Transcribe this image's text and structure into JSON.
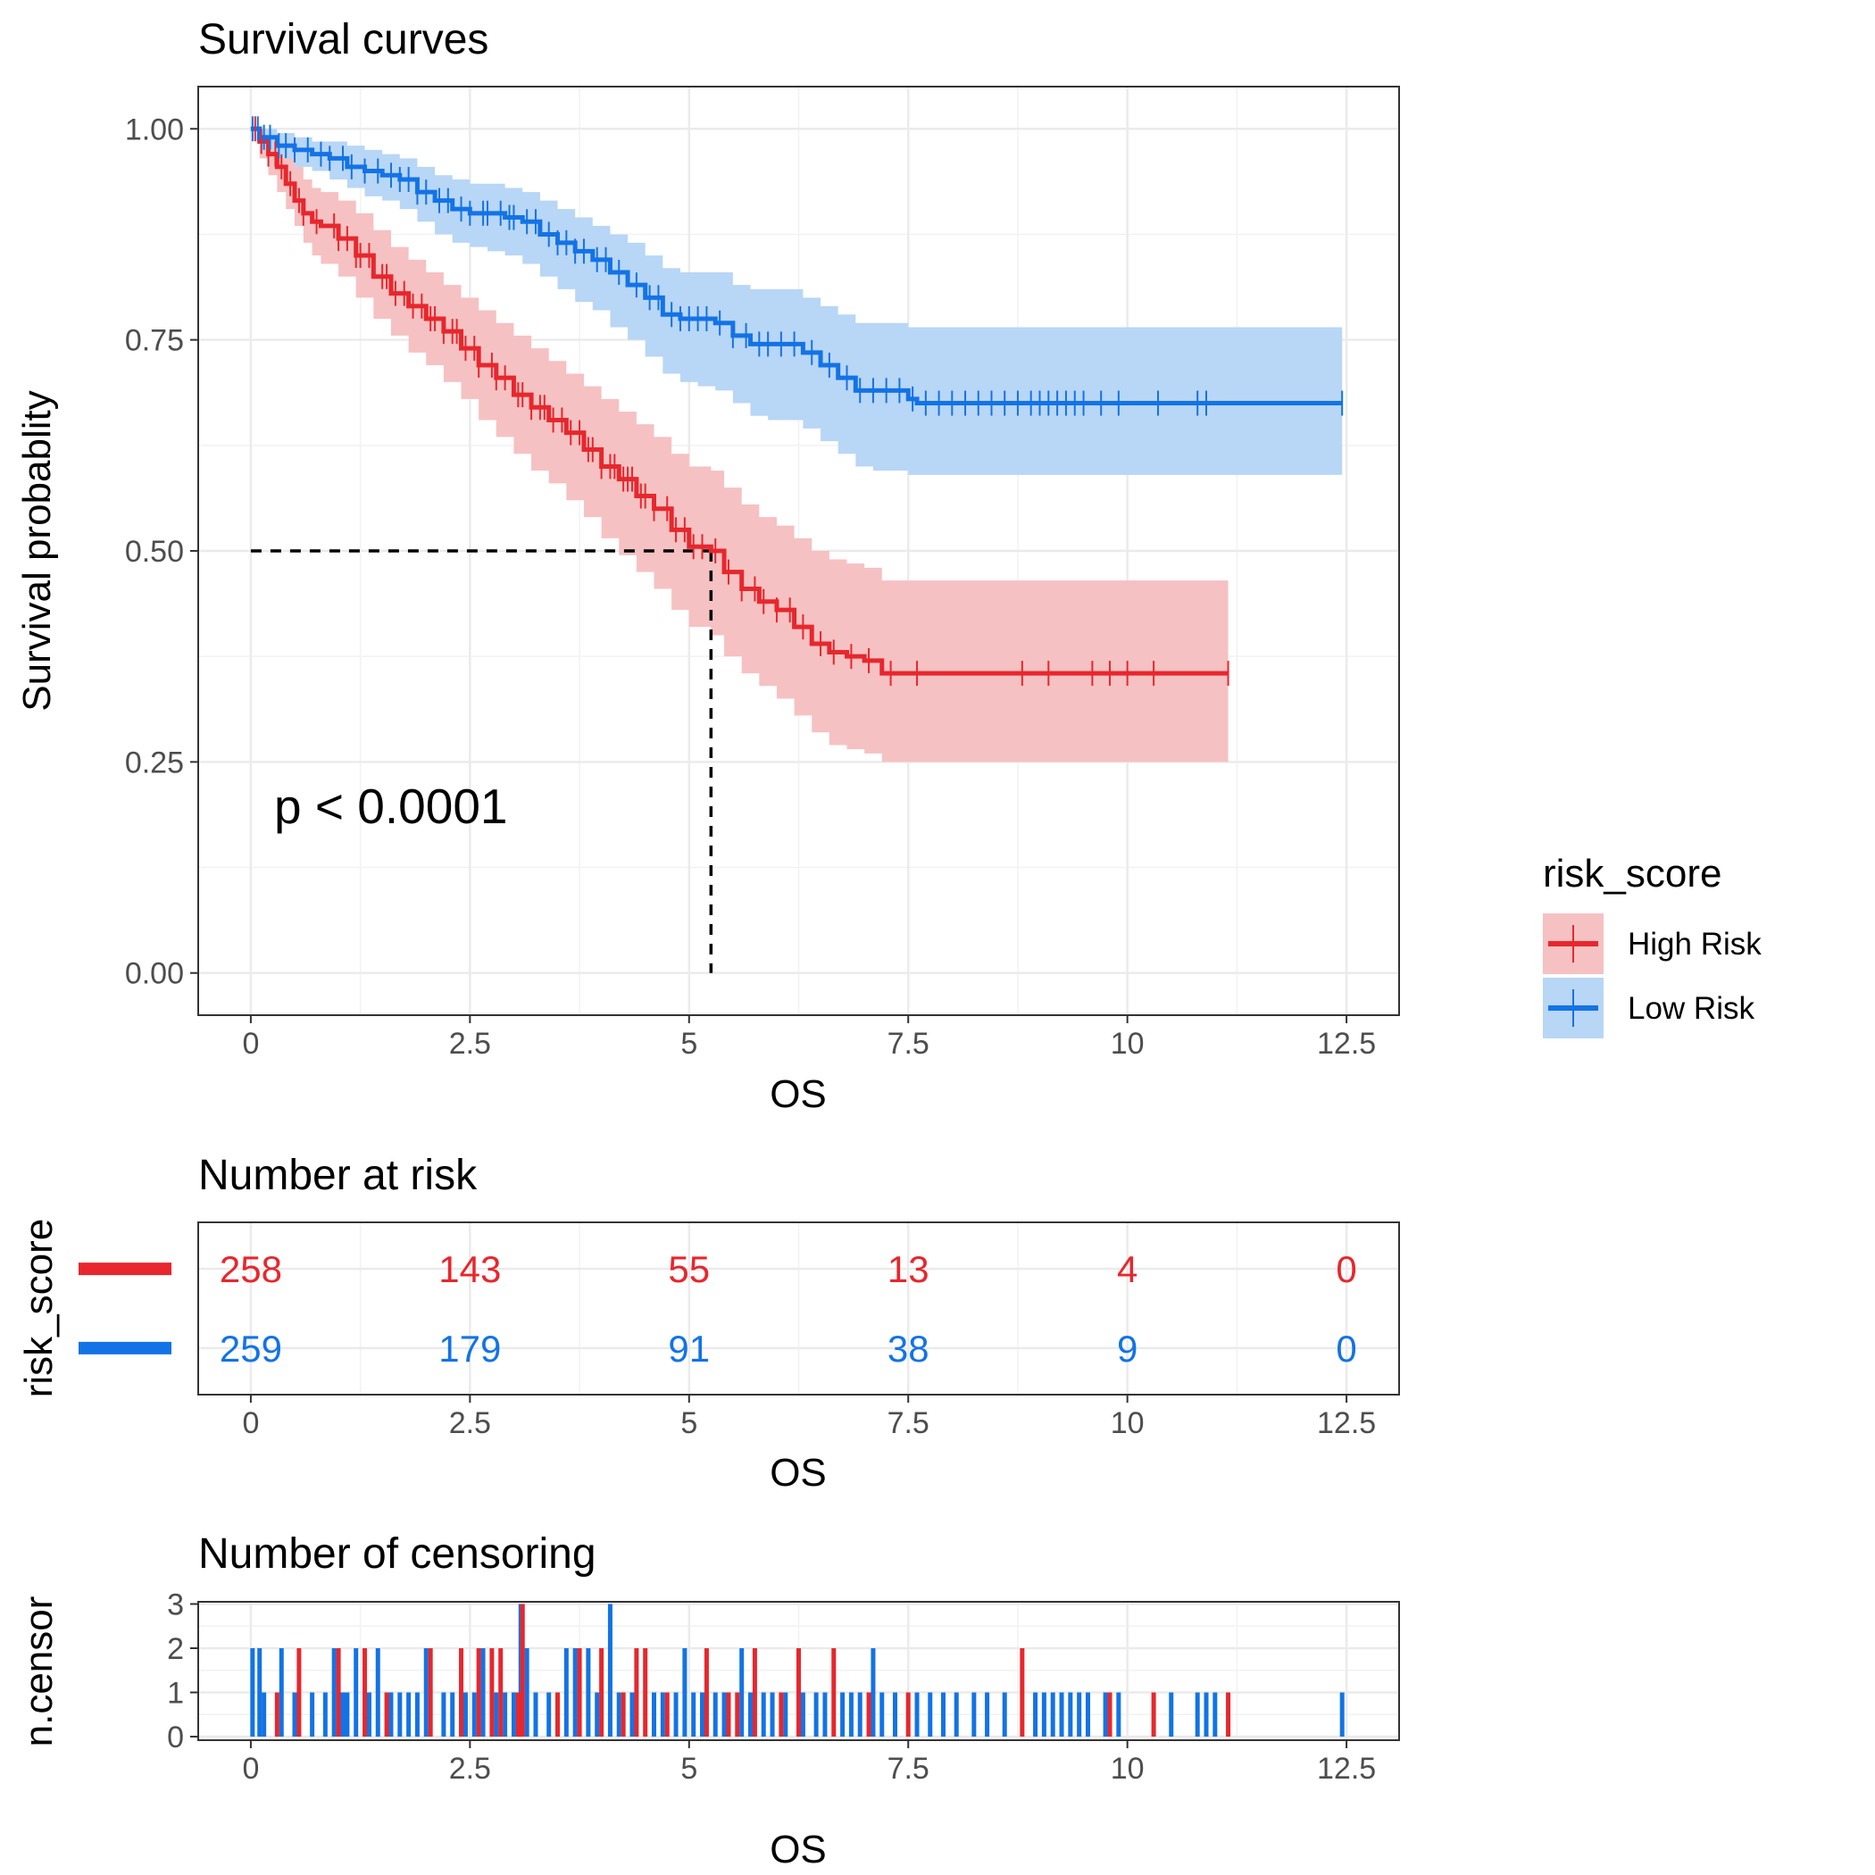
{
  "colors": {
    "high": "#E7272D",
    "low": "#1373E6",
    "high_fill": "#F6C1C2",
    "low_fill": "#B8D6F6"
  },
  "chart_data": [
    {
      "type": "line",
      "title": "Survival curves",
      "xlabel": "OS",
      "ylabel": "Survival probablity",
      "xlim": [
        -0.6,
        13.1
      ],
      "ylim": [
        -0.05,
        1.05
      ],
      "x_ticks": [
        0,
        2.5,
        5,
        7.5,
        10,
        12.5
      ],
      "x_tick_labels": [
        "0",
        "2.5",
        "5",
        "7.5",
        "10",
        "12.5"
      ],
      "y_ticks": [
        0,
        0.25,
        0.5,
        0.75,
        1.0
      ],
      "y_tick_labels": [
        "0.00",
        "0.25",
        "0.50",
        "0.75",
        "1.00"
      ],
      "grid": true,
      "annotation": "p < 0.0001",
      "median_line": {
        "y": 0.5,
        "x": 5.25
      },
      "legend": {
        "title": "risk_score",
        "placement": "right",
        "entries": [
          "High Risk",
          "Low Risk"
        ]
      },
      "series": [
        {
          "name": "High Risk",
          "color_key": "high",
          "x": [
            0,
            0.1,
            0.2,
            0.3,
            0.4,
            0.5,
            0.6,
            0.7,
            0.8,
            1.0,
            1.2,
            1.4,
            1.6,
            1.8,
            2.0,
            2.2,
            2.4,
            2.6,
            2.8,
            3.0,
            3.2,
            3.4,
            3.6,
            3.8,
            4.0,
            4.2,
            4.4,
            4.6,
            4.8,
            5.0,
            5.25,
            5.4,
            5.6,
            5.8,
            6.0,
            6.2,
            6.4,
            6.6,
            6.8,
            7.0,
            7.2,
            11.15
          ],
          "y": [
            1.0,
            0.985,
            0.97,
            0.955,
            0.935,
            0.915,
            0.9,
            0.89,
            0.885,
            0.87,
            0.85,
            0.825,
            0.805,
            0.79,
            0.775,
            0.76,
            0.74,
            0.72,
            0.705,
            0.685,
            0.67,
            0.655,
            0.64,
            0.62,
            0.6,
            0.585,
            0.565,
            0.55,
            0.525,
            0.505,
            0.5,
            0.475,
            0.455,
            0.44,
            0.43,
            0.41,
            0.39,
            0.38,
            0.375,
            0.37,
            0.355,
            0.355
          ],
          "lower": [
            1.0,
            0.965,
            0.945,
            0.925,
            0.905,
            0.885,
            0.865,
            0.85,
            0.84,
            0.825,
            0.8,
            0.775,
            0.755,
            0.735,
            0.72,
            0.7,
            0.68,
            0.655,
            0.635,
            0.615,
            0.595,
            0.58,
            0.56,
            0.54,
            0.515,
            0.495,
            0.475,
            0.455,
            0.43,
            0.41,
            0.4,
            0.375,
            0.355,
            0.34,
            0.325,
            0.305,
            0.285,
            0.27,
            0.265,
            0.26,
            0.25,
            0.25
          ],
          "upper": [
            1.0,
            1.0,
            0.995,
            0.985,
            0.97,
            0.955,
            0.94,
            0.93,
            0.925,
            0.915,
            0.9,
            0.88,
            0.86,
            0.845,
            0.83,
            0.815,
            0.8,
            0.785,
            0.77,
            0.755,
            0.74,
            0.725,
            0.71,
            0.695,
            0.68,
            0.665,
            0.65,
            0.635,
            0.615,
            0.6,
            0.595,
            0.575,
            0.555,
            0.54,
            0.53,
            0.515,
            0.5,
            0.49,
            0.485,
            0.48,
            0.465,
            0.465
          ],
          "censor_x": [
            0.05,
            0.12,
            0.2,
            0.28,
            0.35,
            0.45,
            0.55,
            0.6,
            0.75,
            0.95,
            1.0,
            1.1,
            1.2,
            1.25,
            1.35,
            1.5,
            1.55,
            1.65,
            1.75,
            1.85,
            1.95,
            2.05,
            2.1,
            2.2,
            2.3,
            2.35,
            2.45,
            2.55,
            2.6,
            2.75,
            2.8,
            2.9,
            3.05,
            3.1,
            3.2,
            3.3,
            3.35,
            3.45,
            3.55,
            3.65,
            3.75,
            3.85,
            3.9,
            4.0,
            4.1,
            4.15,
            4.25,
            4.3,
            4.35,
            4.45,
            4.5,
            4.6,
            4.75,
            4.85,
            4.95,
            5.05,
            5.15,
            5.3,
            5.45,
            5.6,
            5.75,
            5.85,
            6.0,
            6.15,
            6.3,
            6.5,
            6.65,
            6.85,
            7.05,
            7.3,
            7.6,
            8.8,
            9.1,
            9.6,
            9.8,
            10.0,
            10.3,
            11.15
          ]
        },
        {
          "name": "Low Risk",
          "color_key": "low",
          "x": [
            0,
            0.1,
            0.3,
            0.5,
            0.7,
            0.9,
            1.1,
            1.3,
            1.5,
            1.7,
            1.9,
            2.1,
            2.3,
            2.5,
            2.7,
            2.9,
            3.1,
            3.3,
            3.5,
            3.7,
            3.9,
            4.1,
            4.3,
            4.5,
            4.7,
            4.9,
            5.1,
            5.3,
            5.5,
            5.7,
            5.9,
            6.1,
            6.3,
            6.5,
            6.7,
            6.9,
            7.1,
            7.3,
            7.5,
            7.6,
            12.45
          ],
          "y": [
            1.0,
            0.99,
            0.98,
            0.975,
            0.97,
            0.965,
            0.955,
            0.95,
            0.945,
            0.94,
            0.925,
            0.915,
            0.905,
            0.9,
            0.9,
            0.895,
            0.89,
            0.875,
            0.865,
            0.855,
            0.845,
            0.83,
            0.815,
            0.8,
            0.78,
            0.775,
            0.775,
            0.77,
            0.755,
            0.745,
            0.745,
            0.745,
            0.735,
            0.72,
            0.705,
            0.69,
            0.69,
            0.69,
            0.68,
            0.675,
            0.675
          ],
          "lower": [
            1.0,
            0.975,
            0.965,
            0.955,
            0.95,
            0.94,
            0.93,
            0.92,
            0.915,
            0.905,
            0.89,
            0.875,
            0.865,
            0.86,
            0.855,
            0.85,
            0.84,
            0.825,
            0.81,
            0.795,
            0.785,
            0.765,
            0.75,
            0.73,
            0.71,
            0.7,
            0.695,
            0.69,
            0.675,
            0.66,
            0.655,
            0.655,
            0.645,
            0.63,
            0.615,
            0.6,
            0.595,
            0.595,
            0.59,
            0.59,
            0.59
          ],
          "upper": [
            1.0,
            1.0,
            0.995,
            0.99,
            0.985,
            0.985,
            0.98,
            0.975,
            0.97,
            0.965,
            0.955,
            0.945,
            0.94,
            0.935,
            0.935,
            0.93,
            0.925,
            0.915,
            0.905,
            0.895,
            0.885,
            0.875,
            0.865,
            0.85,
            0.835,
            0.83,
            0.83,
            0.83,
            0.815,
            0.81,
            0.81,
            0.81,
            0.8,
            0.79,
            0.78,
            0.77,
            0.77,
            0.77,
            0.765,
            0.765,
            0.765
          ],
          "censor_x": [
            0.02,
            0.08,
            0.15,
            0.22,
            0.32,
            0.4,
            0.5,
            0.65,
            0.8,
            0.9,
            1.05,
            1.15,
            1.3,
            1.45,
            1.6,
            1.7,
            1.8,
            1.9,
            2.0,
            2.15,
            2.25,
            2.4,
            2.5,
            2.65,
            2.7,
            2.85,
            2.95,
            3.0,
            3.15,
            3.25,
            3.4,
            3.5,
            3.6,
            3.7,
            3.8,
            3.95,
            4.05,
            4.2,
            4.4,
            4.55,
            4.65,
            4.8,
            4.9,
            5.0,
            5.1,
            5.2,
            5.35,
            5.5,
            5.65,
            5.8,
            5.9,
            6.05,
            6.2,
            6.4,
            6.6,
            6.8,
            6.95,
            7.1,
            7.25,
            7.4,
            7.55,
            7.7,
            7.85,
            8.0,
            8.15,
            8.3,
            8.45,
            8.6,
            8.75,
            8.9,
            9.0,
            9.1,
            9.2,
            9.3,
            9.4,
            9.5,
            9.7,
            9.9,
            10.35,
            10.8,
            10.9,
            12.45
          ]
        }
      ]
    },
    {
      "type": "table",
      "title": "Number at risk",
      "xlabel": "OS",
      "ylabel": "risk_score",
      "xlim": [
        -0.6,
        13.1
      ],
      "x_ticks": [
        0,
        2.5,
        5,
        7.5,
        10,
        12.5
      ],
      "x_tick_labels": [
        "0",
        "2.5",
        "5",
        "7.5",
        "10",
        "12.5"
      ],
      "rows": [
        {
          "name": "High Risk",
          "color_key": "high",
          "values": [
            "258",
            "143",
            "55",
            "13",
            "4",
            "0"
          ]
        },
        {
          "name": "Low Risk",
          "color_key": "low",
          "values": [
            "259",
            "179",
            "91",
            "38",
            "9",
            "0"
          ]
        }
      ]
    },
    {
      "type": "bar",
      "title": "Number of censoring",
      "xlabel": "OS",
      "ylabel": "n.censor",
      "xlim": [
        -0.6,
        13.1
      ],
      "ylim": [
        -0.08,
        3.05
      ],
      "x_ticks": [
        0,
        2.5,
        5,
        7.5,
        10,
        12.5
      ],
      "x_tick_labels": [
        "0",
        "2.5",
        "5",
        "7.5",
        "10",
        "12.5"
      ],
      "y_ticks": [
        0,
        1,
        2,
        3
      ],
      "y_tick_labels": [
        "0",
        "1",
        "2",
        "3"
      ],
      "series": [
        {
          "name": "High Risk",
          "color_key": "high",
          "x": [
            0.3,
            0.55,
            1.0,
            1.3,
            1.55,
            2.05,
            2.4,
            2.6,
            2.75,
            2.85,
            3.05,
            3.1,
            3.5,
            3.75,
            4.0,
            4.25,
            4.4,
            4.5,
            4.75,
            5.2,
            5.45,
            5.55,
            5.75,
            6.05,
            6.25,
            6.65,
            7.05,
            7.5,
            8.8,
            9.8,
            10.3,
            11.15
          ],
          "values": [
            1,
            2,
            2,
            2,
            1,
            2,
            2,
            2,
            2,
            2,
            1,
            3,
            1,
            2,
            2,
            1,
            2,
            2,
            1,
            2,
            1,
            1,
            2,
            1,
            2,
            2,
            1,
            1,
            2,
            1,
            1,
            1
          ]
        },
        {
          "name": "Low Risk",
          "color_key": "low",
          "x": [
            0.02,
            0.1,
            0.15,
            0.35,
            0.5,
            0.7,
            0.85,
            0.95,
            1.05,
            1.1,
            1.2,
            1.35,
            1.45,
            1.6,
            1.7,
            1.8,
            1.9,
            2.0,
            2.2,
            2.3,
            2.45,
            2.55,
            2.65,
            2.8,
            2.9,
            3.0,
            3.08,
            3.15,
            3.25,
            3.4,
            3.6,
            3.7,
            3.85,
            3.95,
            4.1,
            4.2,
            4.35,
            4.6,
            4.7,
            4.85,
            4.95,
            5.05,
            5.15,
            5.3,
            5.4,
            5.6,
            5.7,
            5.85,
            5.95,
            6.1,
            6.3,
            6.45,
            6.55,
            6.75,
            6.85,
            6.95,
            7.1,
            7.2,
            7.35,
            7.6,
            7.75,
            7.9,
            8.05,
            8.25,
            8.4,
            8.6,
            8.95,
            9.05,
            9.15,
            9.25,
            9.35,
            9.45,
            9.55,
            9.75,
            9.9,
            10.5,
            10.8,
            10.9,
            11.0,
            12.45
          ],
          "values": [
            2,
            2,
            1,
            2,
            1,
            1,
            1,
            2,
            1,
            1,
            2,
            1,
            2,
            1,
            1,
            1,
            1,
            2,
            1,
            1,
            1,
            1,
            2,
            1,
            1,
            1,
            3,
            2,
            1,
            1,
            2,
            2,
            2,
            1,
            3,
            1,
            1,
            1,
            1,
            1,
            2,
            1,
            1,
            1,
            1,
            2,
            1,
            1,
            1,
            1,
            1,
            1,
            1,
            1,
            1,
            1,
            2,
            1,
            1,
            1,
            1,
            1,
            1,
            1,
            1,
            1,
            1,
            1,
            1,
            1,
            1,
            1,
            1,
            1,
            1,
            1,
            1,
            1,
            1,
            1
          ]
        }
      ]
    }
  ]
}
